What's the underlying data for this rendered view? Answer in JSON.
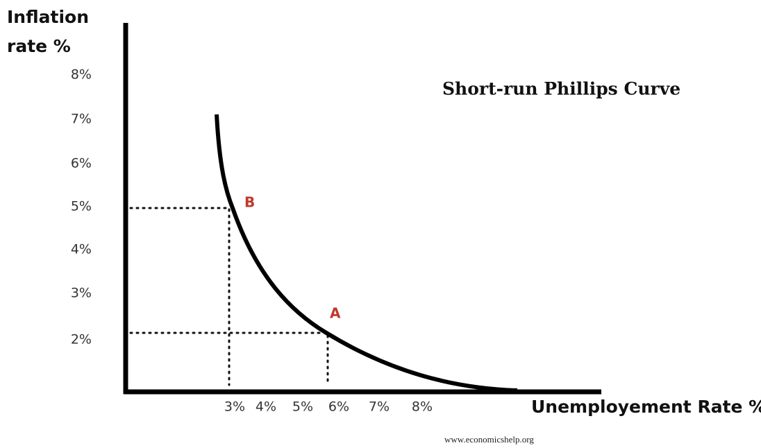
{
  "title": "Short-run Phillips Curve",
  "y_axis": {
    "label_line1": "Inflation",
    "label_line2": "rate %",
    "ticks": [
      "8%",
      "7%",
      "6%",
      "5%",
      "4%",
      "3%",
      "2%"
    ]
  },
  "x_axis": {
    "label": "Unemployement Rate %",
    "ticks": [
      "3%",
      "4%",
      "5%",
      "6%",
      "7%",
      "8%"
    ]
  },
  "points": [
    {
      "label": "B"
    },
    {
      "label": "A"
    }
  ],
  "source": "www.economicshelp.org"
}
